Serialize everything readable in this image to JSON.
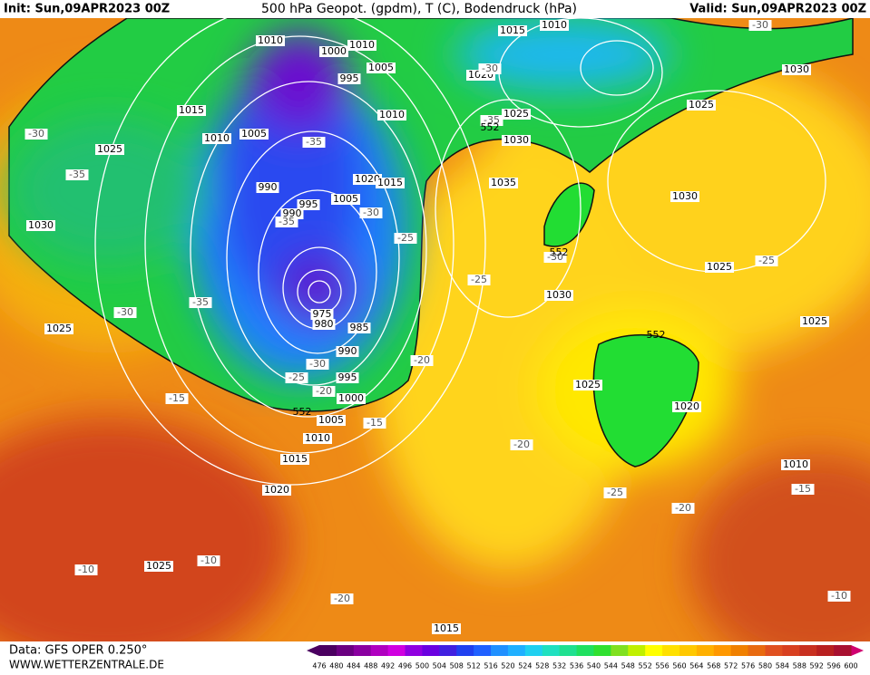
{
  "header": {
    "init": "Init: Sun,09APR2023 00Z",
    "title": "500 hPa Geopot. (gpdm), T (C), Bodendruck (hPa)",
    "valid": "Valid: Sun,09APR2023 00Z"
  },
  "footer": {
    "data": "Data: GFS OPER 0.250°",
    "site": "WWW.WETTERZENTRALE.DE"
  },
  "isobar_labels": [
    "1010",
    "1010",
    "1000",
    "1005",
    "995",
    "1015",
    "1010",
    "1020",
    "1015",
    "1010",
    "1005",
    "1010",
    "1025",
    "1030",
    "1025",
    "990",
    "1020",
    "1015",
    "1005",
    "995",
    "990",
    "1035",
    "1030",
    "1030",
    "1025",
    "1030",
    "1030",
    "1025",
    "1025",
    "1025",
    "975",
    "980",
    "985",
    "990",
    "995",
    "1000",
    "1005",
    "1010",
    "1015",
    "1020",
    "1025",
    "1025",
    "1020",
    "1010",
    "1015"
  ],
  "temperature_labels": [
    "-30",
    "-30",
    "-35",
    "-35",
    "-30",
    "-35",
    "-30",
    "-35",
    "-25",
    "-25",
    "-30",
    "-35",
    "-30",
    "-25",
    "-20",
    "-20",
    "-15",
    "-15",
    "-20",
    "-25",
    "-20",
    "-15",
    "-10",
    "-10",
    "-20",
    "-10",
    "-25",
    "-30"
  ],
  "geopotential_labels": [
    "552",
    "552",
    "552",
    "552"
  ],
  "colorbar": {
    "ticks": [
      476,
      480,
      484,
      488,
      492,
      496,
      500,
      504,
      508,
      512,
      516,
      520,
      524,
      528,
      532,
      536,
      540,
      544,
      548,
      552,
      556,
      560,
      564,
      568,
      572,
      576,
      580,
      584,
      588,
      592,
      596,
      600
    ],
    "colors": [
      "#4b0060",
      "#6a0080",
      "#8a00a0",
      "#b000c0",
      "#d000e0",
      "#9000e0",
      "#6a00e0",
      "#4020e0",
      "#2040f0",
      "#2060ff",
      "#2090ff",
      "#20b0ff",
      "#20d0f0",
      "#20e0c0",
      "#20e090",
      "#20e060",
      "#30e030",
      "#80e020",
      "#c0f000",
      "#ffff00",
      "#ffe000",
      "#ffc800",
      "#ffb000",
      "#ff9800",
      "#f08000",
      "#e86a10",
      "#e05020",
      "#d84020",
      "#c83020",
      "#b82020",
      "#a81030",
      "#d00070"
    ]
  }
}
